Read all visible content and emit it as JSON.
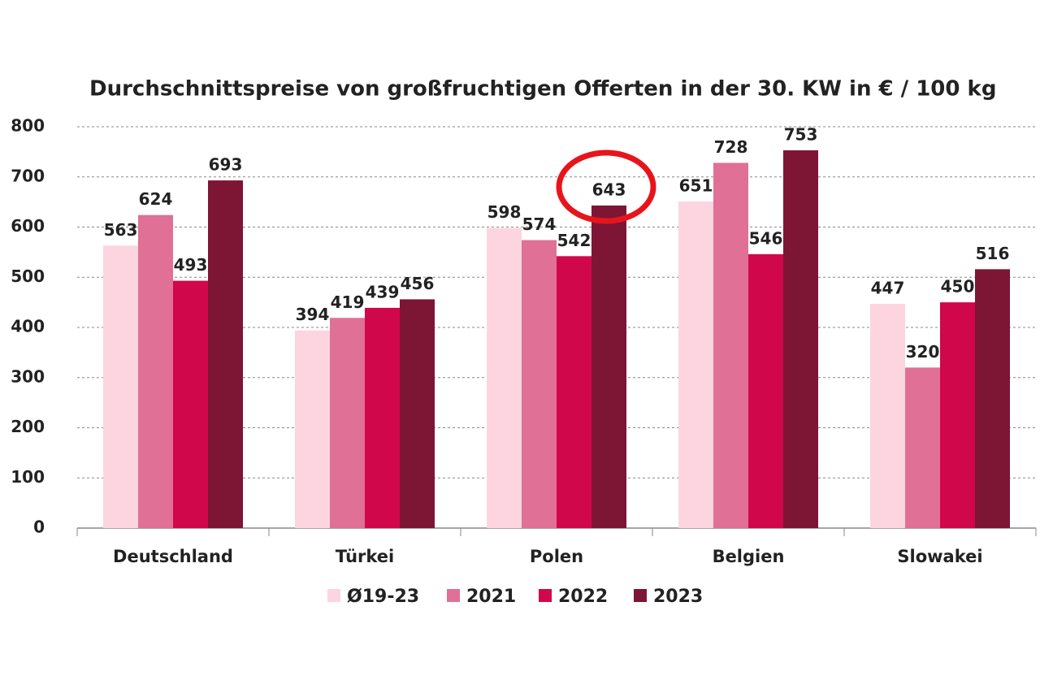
{
  "chart_data": {
    "type": "bar",
    "title": "Durchschnittspreise von großfruchtigen Offerten in der 30. KW in € / 100 kg",
    "categories": [
      "Deutschland",
      "Türkei",
      "Polen",
      "Belgien",
      "Slowakei"
    ],
    "series": [
      {
        "name": "Ø19-23",
        "color": "#fcd5e0",
        "values": [
          563,
          394,
          598,
          651,
          447
        ]
      },
      {
        "name": "2021",
        "color": "#e07096",
        "values": [
          624,
          419,
          574,
          728,
          320
        ]
      },
      {
        "name": "2022",
        "color": "#d0074a",
        "values": [
          493,
          439,
          542,
          546,
          450
        ]
      },
      {
        "name": "2023",
        "color": "#7d1535",
        "values": [
          693,
          456,
          643,
          753,
          516
        ]
      }
    ],
    "ylim": [
      0,
      800
    ],
    "yticks": [
      0,
      100,
      200,
      300,
      400,
      500,
      600,
      700,
      800
    ],
    "grid": true
  }
}
